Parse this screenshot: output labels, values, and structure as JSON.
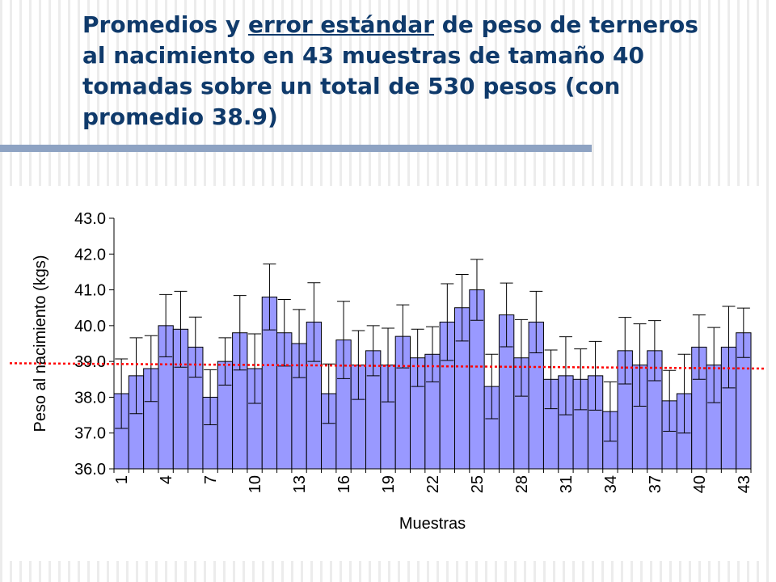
{
  "title": {
    "part1": "Promedios y ",
    "link": "error estándar",
    "part2": " de peso de terneros al nacimiento en 43 muestras de tamaño 40 tomadas sobre un total de 530 pesos (con promedio 38.9)"
  },
  "colors": {
    "title": "#0f3a6b",
    "title_rule": "#8ea3c3",
    "bar_fill": "#9999ff",
    "bar_stroke": "#000000",
    "mean_line": "#ff0000"
  },
  "chart_data": {
    "type": "bar",
    "xlabel": "Muestras",
    "ylabel": "Peso al nacimiento (kgs)",
    "ylim": [
      36.0,
      43.0
    ],
    "yticks": [
      "36.0",
      "37.0",
      "38.0",
      "39.0",
      "40.0",
      "41.0",
      "42.0",
      "43.0"
    ],
    "xticks": [
      "1",
      "4",
      "7",
      "10",
      "13",
      "16",
      "19",
      "22",
      "25",
      "28",
      "31",
      "34",
      "37",
      "40",
      "43"
    ],
    "categories": [
      "1",
      "2",
      "3",
      "4",
      "5",
      "6",
      "7",
      "8",
      "9",
      "10",
      "11",
      "12",
      "13",
      "14",
      "15",
      "16",
      "17",
      "18",
      "19",
      "20",
      "21",
      "22",
      "23",
      "24",
      "25",
      "26",
      "27",
      "28",
      "29",
      "30",
      "31",
      "32",
      "33",
      "34",
      "35",
      "36",
      "37",
      "38",
      "39",
      "40",
      "41",
      "42",
      "43"
    ],
    "values": [
      38.1,
      38.6,
      38.8,
      40.0,
      39.9,
      39.4,
      38.0,
      39.0,
      39.8,
      38.8,
      40.8,
      39.8,
      39.5,
      40.1,
      38.1,
      39.6,
      38.9,
      39.3,
      38.9,
      39.7,
      39.1,
      39.2,
      40.1,
      40.5,
      41.0,
      38.3,
      40.3,
      39.1,
      40.1,
      38.5,
      38.6,
      38.5,
      38.6,
      37.6,
      39.3,
      38.9,
      39.3,
      37.9,
      38.1,
      39.4,
      38.9,
      39.4,
      39.8
    ],
    "error": [
      0.97,
      1.06,
      0.92,
      0.87,
      1.06,
      0.84,
      0.77,
      0.66,
      1.04,
      0.97,
      0.92,
      0.93,
      0.95,
      1.1,
      0.83,
      1.08,
      0.96,
      0.7,
      1.03,
      0.88,
      0.8,
      0.77,
      1.07,
      0.93,
      0.85,
      0.9,
      0.89,
      1.07,
      0.86,
      0.82,
      1.09,
      0.85,
      0.96,
      0.83,
      0.93,
      1.15,
      0.84,
      0.85,
      1.1,
      0.9,
      1.05,
      1.14,
      0.69
    ],
    "mean_line": {
      "y_start": 38.95,
      "y_end": 38.8
    },
    "grid": false,
    "legend": "none"
  }
}
